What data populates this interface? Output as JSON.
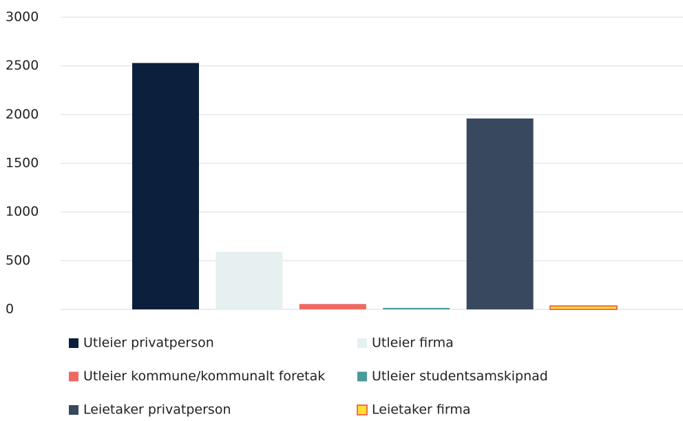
{
  "chart_data": {
    "type": "bar",
    "series": [
      {
        "name": "Utleier privatperson",
        "color": "#0c1f3c",
        "values": [
          2530
        ]
      },
      {
        "name": "Utleier firma",
        "color": "#e6f0f0",
        "values": [
          590
        ]
      },
      {
        "name": "Utleier kommune/kommunalt foretak",
        "color": "#ec6a62",
        "values": [
          55
        ]
      },
      {
        "name": "Utleier studentsamskipnad",
        "color": "#4a9a9a",
        "values": [
          15
        ]
      },
      {
        "name": "Leietaker privatperson",
        "color": "#38495f",
        "values": [
          1960
        ]
      },
      {
        "name": "Leietaker firma",
        "color": "#ffe033",
        "edgecolor": "#e8453c",
        "values": [
          35
        ]
      }
    ],
    "ylim": [
      0,
      3000
    ],
    "yticks": [
      0,
      500,
      1000,
      1500,
      2000,
      2500,
      3000
    ],
    "grid": true
  }
}
